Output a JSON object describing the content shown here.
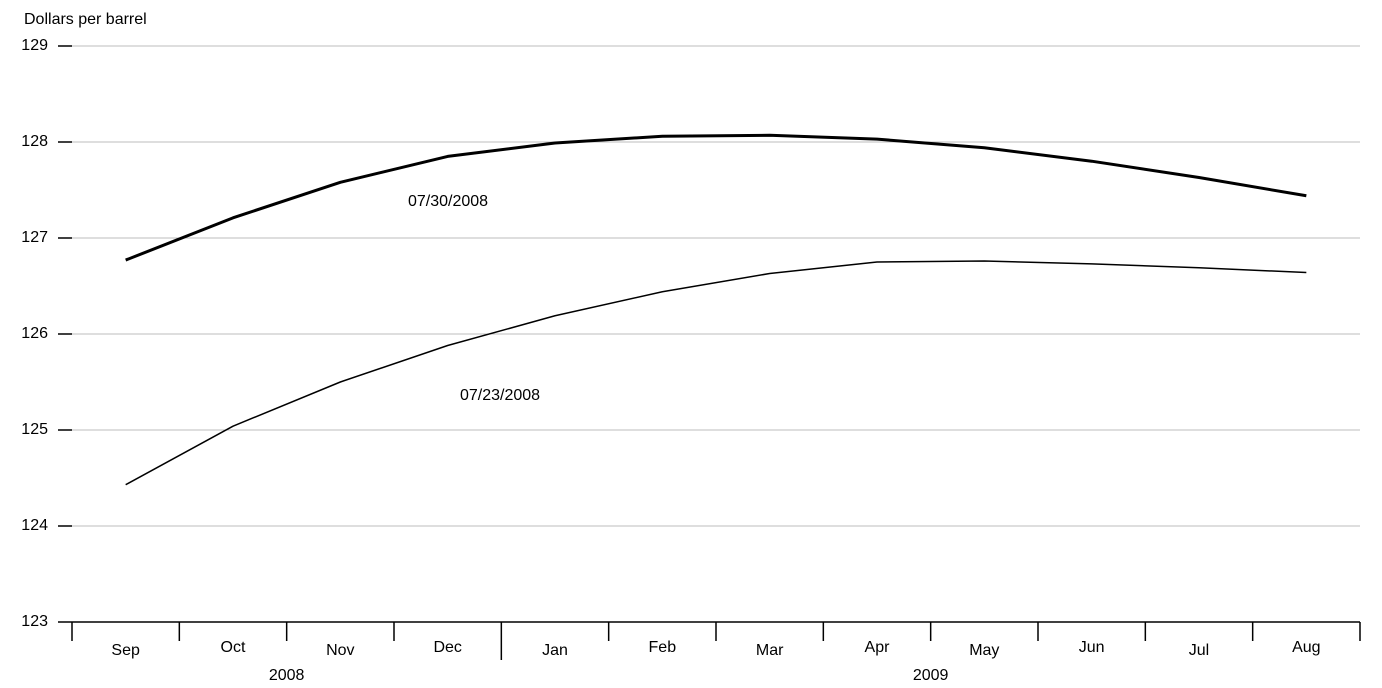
{
  "chart_data": {
    "type": "line",
    "y_label": "Dollars per barrel",
    "categories": [
      "Sep",
      "Oct",
      "Nov",
      "Dec",
      "Jan",
      "Feb",
      "Mar",
      "Apr",
      "May",
      "Jun",
      "Jul",
      "Aug"
    ],
    "x_groups": [
      {
        "label": "2008",
        "count": 4
      },
      {
        "label": "2009",
        "count": 8
      }
    ],
    "series": [
      {
        "name": "07/30/2008",
        "color": "#000000",
        "values": [
          126.77,
          127.21,
          127.58,
          127.85,
          127.99,
          128.06,
          128.07,
          128.03,
          127.94,
          127.8,
          127.63,
          127.44
        ]
      },
      {
        "name": "07/23/2008",
        "color": "#000000",
        "values": [
          124.43,
          125.04,
          125.5,
          125.88,
          126.19,
          126.44,
          126.63,
          126.75,
          126.76,
          126.73,
          126.69,
          126.64
        ]
      }
    ],
    "ylim": [
      123,
      129
    ],
    "yticks": [
      123,
      124,
      125,
      126,
      127,
      128,
      129
    ],
    "grid": true
  }
}
